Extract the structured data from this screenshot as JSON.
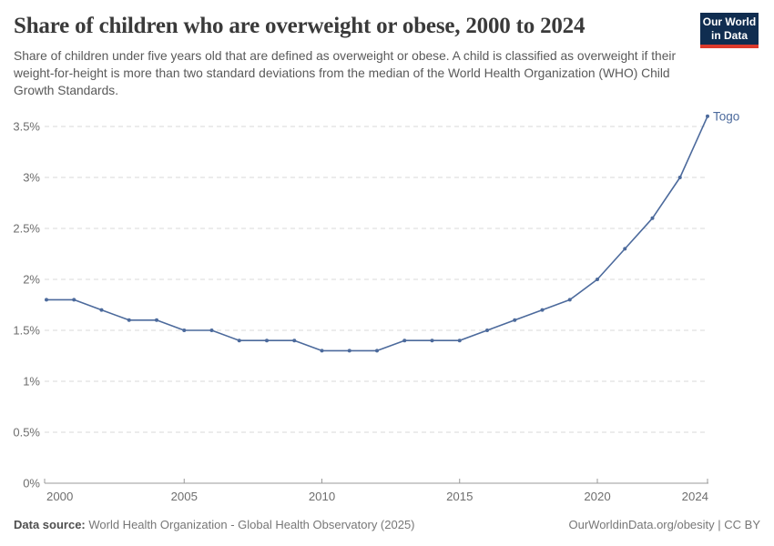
{
  "header": {
    "title": "Share of children who are overweight or obese, 2000 to 2024",
    "subtitle": "Share of children under five years old that are defined as overweight or obese. A child is classified as overweight if their weight-for-height is more than two standard deviations from the median of the World Health Organization (WHO) Child Growth Standards.",
    "logo": {
      "line1": "Our World",
      "line2": "in Data"
    }
  },
  "chart_data": {
    "type": "line",
    "title": "Share of children who are overweight or obese, 2000 to 2024",
    "x": [
      2000,
      2001,
      2002,
      2003,
      2004,
      2005,
      2006,
      2007,
      2008,
      2009,
      2010,
      2011,
      2012,
      2013,
      2014,
      2015,
      2016,
      2017,
      2018,
      2019,
      2020,
      2021,
      2022,
      2023,
      2024
    ],
    "series": [
      {
        "name": "Togo",
        "color": "#4c6a9c",
        "values": [
          1.8,
          1.8,
          1.7,
          1.6,
          1.6,
          1.5,
          1.5,
          1.4,
          1.4,
          1.4,
          1.3,
          1.3,
          1.3,
          1.4,
          1.4,
          1.4,
          1.5,
          1.6,
          1.7,
          1.8,
          2.0,
          2.3,
          2.6,
          3.0,
          3.6
        ]
      }
    ],
    "xlim": [
      2000,
      2024
    ],
    "ylim": [
      0,
      3.6
    ],
    "grid": "horizontal-dashed",
    "legend_position": "end-of-line-label",
    "yticks": [
      {
        "v": 0,
        "label": "0%"
      },
      {
        "v": 0.5,
        "label": "0.5%"
      },
      {
        "v": 1,
        "label": "1%"
      },
      {
        "v": 1.5,
        "label": "1.5%"
      },
      {
        "v": 2,
        "label": "2%"
      },
      {
        "v": 2.5,
        "label": "2.5%"
      },
      {
        "v": 3,
        "label": "3%"
      },
      {
        "v": 3.5,
        "label": "3.5%"
      }
    ],
    "xticks": [
      {
        "v": 2000,
        "label": "2000"
      },
      {
        "v": 2005,
        "label": "2005"
      },
      {
        "v": 2010,
        "label": "2010"
      },
      {
        "v": 2015,
        "label": "2015"
      },
      {
        "v": 2020,
        "label": "2020"
      },
      {
        "v": 2024,
        "label": "2024"
      }
    ]
  },
  "footer": {
    "datasource_label": "Data source:",
    "datasource_text": " World Health Organization - Global Health Observatory (2025)",
    "attribution": "OurWorldinData.org/obesity | CC BY"
  },
  "colors": {
    "series_blue": "#4c6a9c",
    "gridline": "#dadada",
    "axis": "#999999",
    "tick_label": "#6e6e6e",
    "logo_navy": "#102d50",
    "logo_red": "#dc3a2c"
  }
}
